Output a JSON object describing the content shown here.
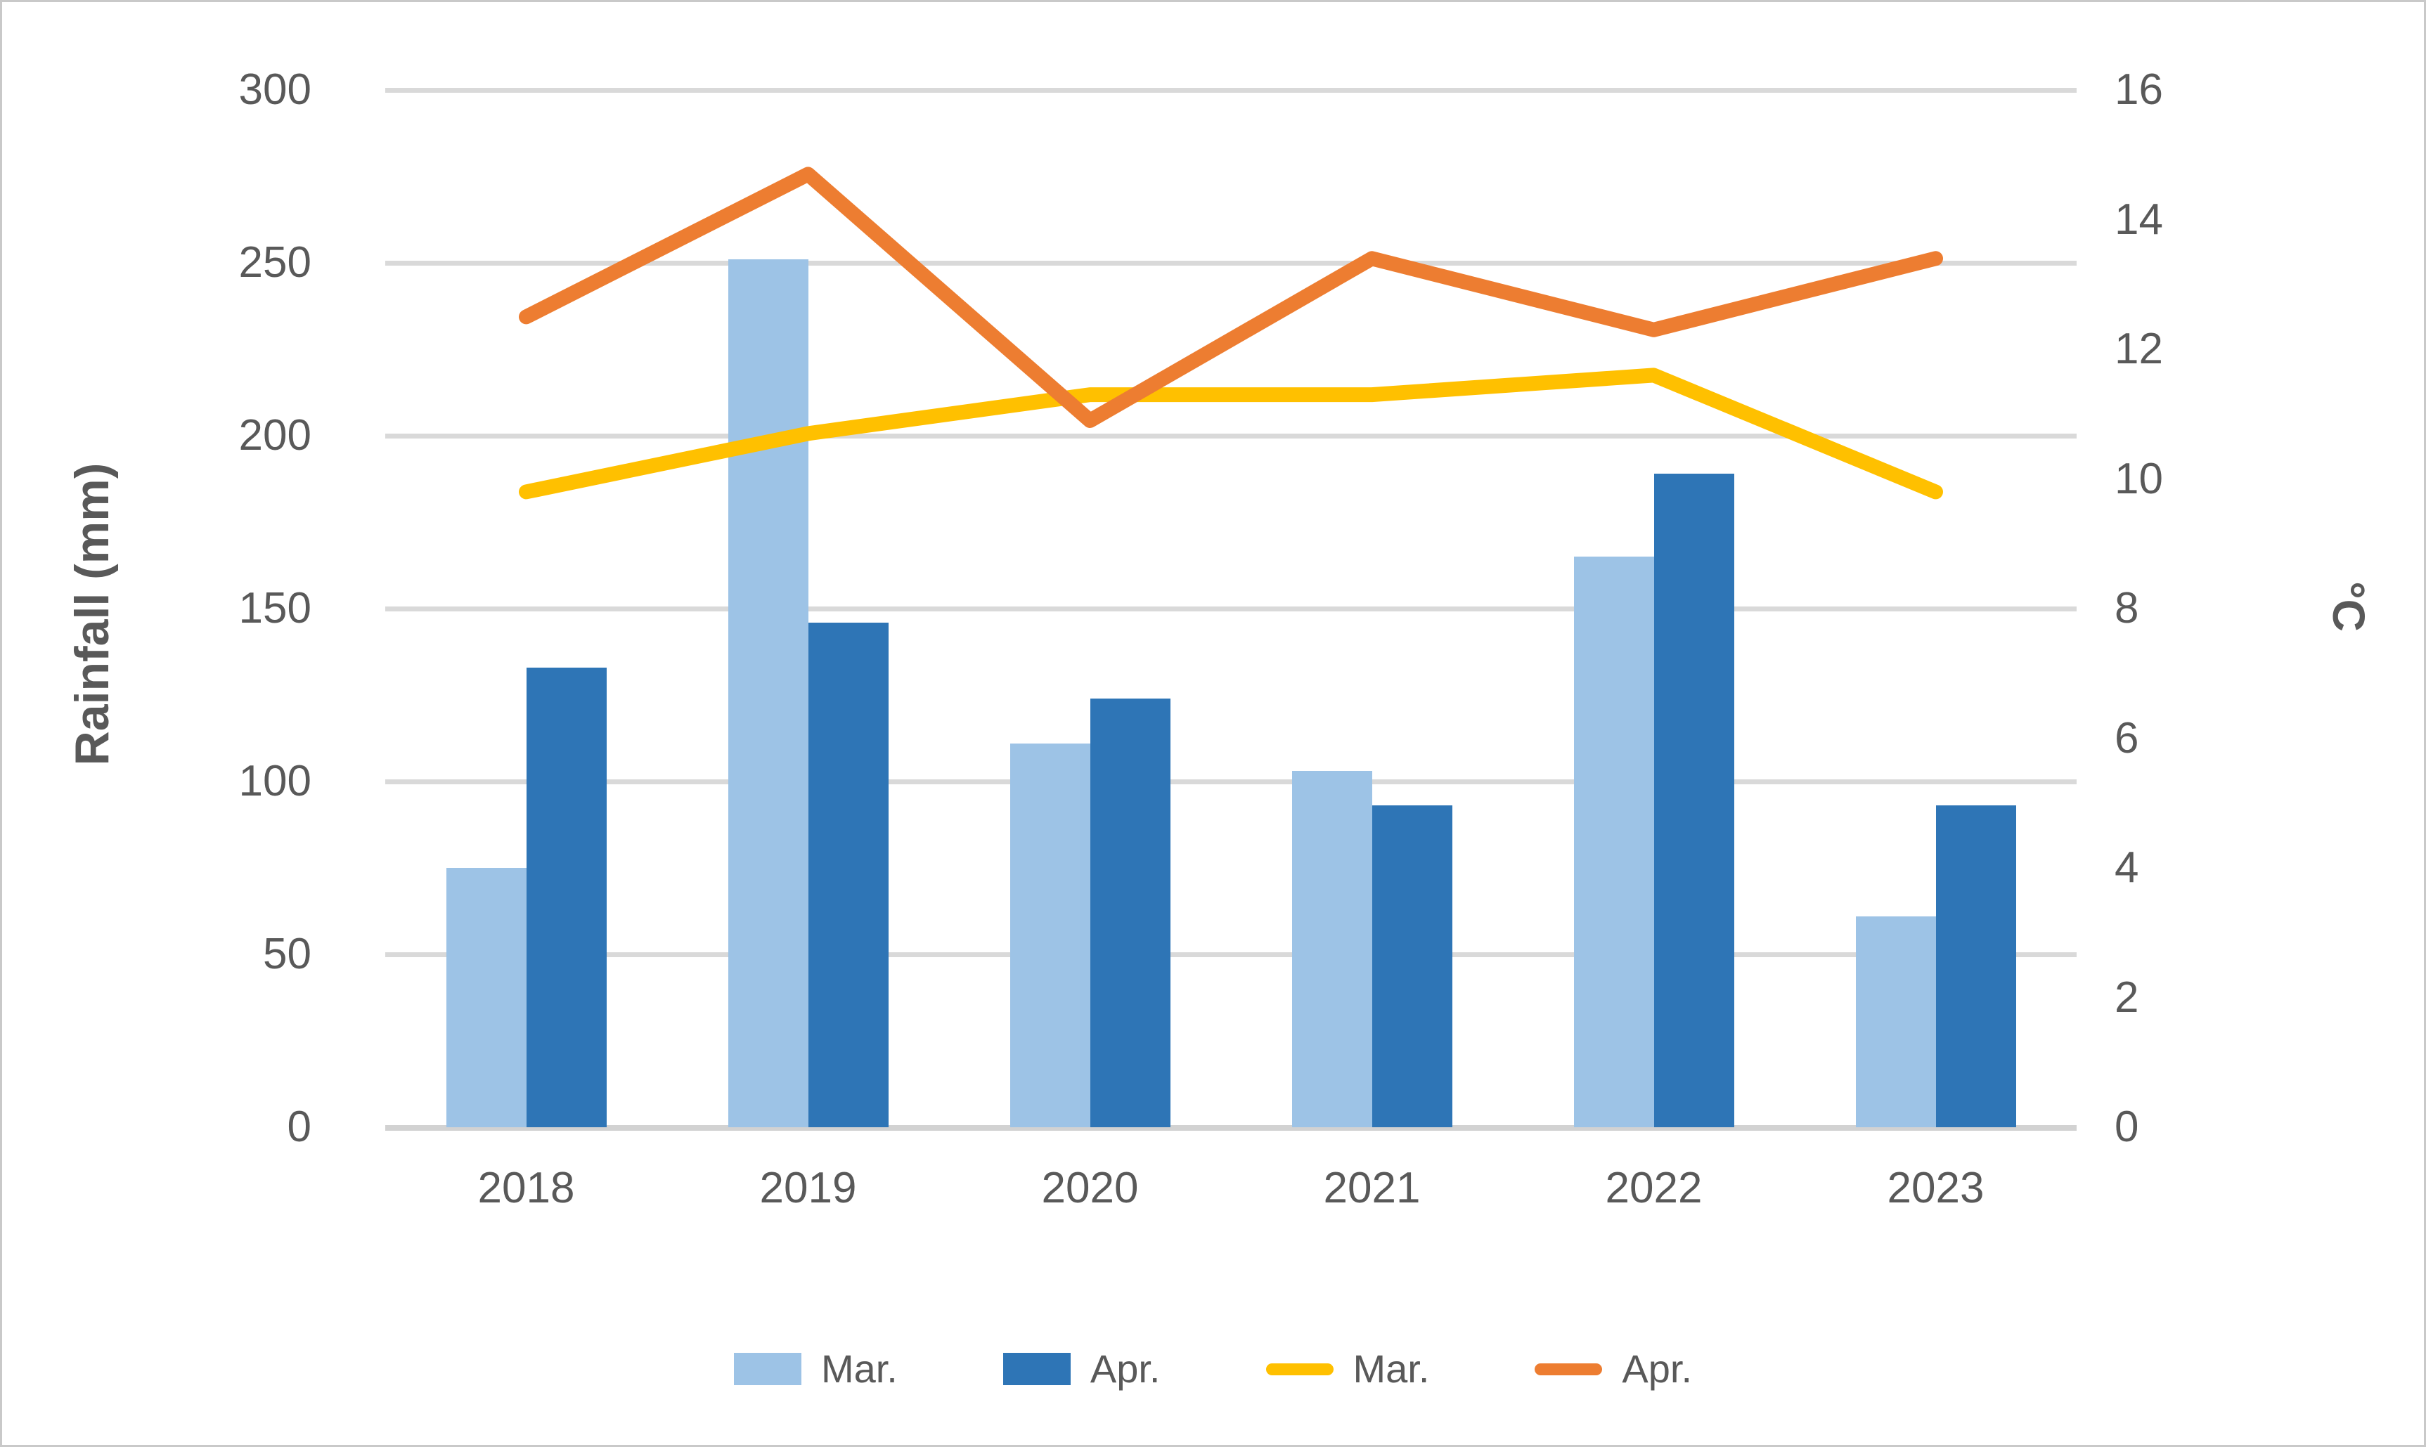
{
  "figure": {
    "background": "#ffffff",
    "border_color": "#c9c9c9"
  },
  "axes": {
    "left": {
      "title": "Rainfall (mm)",
      "ticks": [
        "300",
        "250",
        "200",
        "150",
        "100",
        "50",
        "0"
      ]
    },
    "right": {
      "title": "°C",
      "ticks": [
        "16",
        "14",
        "12",
        "10",
        "8",
        "6",
        "4",
        "2",
        "0"
      ]
    },
    "x": {
      "categories": [
        "2018",
        "2019",
        "2020",
        "2021",
        "2022",
        "2023"
      ]
    }
  },
  "chart_data": {
    "type": "combo",
    "subtypes": [
      "bar",
      "line"
    ],
    "categories": [
      "2018",
      "2019",
      "2020",
      "2021",
      "2022",
      "2023"
    ],
    "series": [
      {
        "name": "Mar.",
        "type": "bar",
        "axis": "left",
        "color": "#9dc3e6",
        "values": [
          75,
          251,
          111,
          103,
          165,
          61
        ],
        "units": "mm"
      },
      {
        "name": "Apr.",
        "type": "bar",
        "axis": "left",
        "color": "#2e75b6",
        "values": [
          133,
          146,
          124,
          93,
          189,
          93
        ],
        "units": "mm"
      },
      {
        "name": "Mar.",
        "type": "line",
        "axis": "right",
        "color": "#ffc000",
        "values": [
          9.8,
          10.7,
          11.3,
          11.3,
          11.6,
          9.8
        ],
        "units": "°C"
      },
      {
        "name": "Apr.",
        "type": "line",
        "axis": "right",
        "color": "#ed7d31",
        "values": [
          12.5,
          14.7,
          10.9,
          13.4,
          12.3,
          13.4
        ],
        "units": "°C"
      }
    ],
    "ylabel_left": "Rainfall (mm)",
    "ylabel_right": "°C",
    "xlabel": "",
    "title": "",
    "left_ylim": [
      0,
      300
    ],
    "left_step": 50,
    "right_ylim": [
      0,
      16
    ],
    "right_step": 2,
    "grid": "horizontal",
    "legend_position": "bottom",
    "gridline_color": "#d9d9d9",
    "tick_color": "#595959"
  }
}
